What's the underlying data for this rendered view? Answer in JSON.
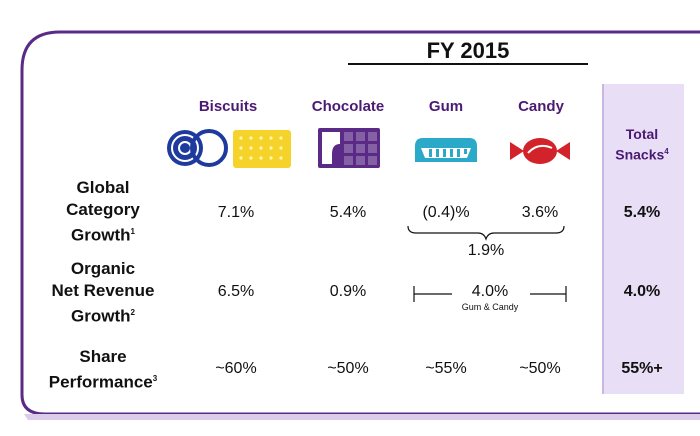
{
  "header": {
    "period": "FY 2015"
  },
  "categories": [
    {
      "name": "Biscuits",
      "icon": "biscuits-icon"
    },
    {
      "name": "Chocolate",
      "icon": "chocolate-icon"
    },
    {
      "name": "Gum",
      "icon": "gum-icon"
    },
    {
      "name": "Candy",
      "icon": "candy-icon"
    }
  ],
  "total": {
    "label": "Total",
    "label2": "Snacks",
    "footnote": "4"
  },
  "rows": {
    "category_growth": {
      "label_lines": [
        "Global",
        "Category",
        "Growth"
      ],
      "footnote": "1",
      "biscuits": "7.1%",
      "chocolate": "5.4%",
      "gum": "(0.4)%",
      "candy": "3.6%",
      "gum_candy_combined": "1.9%",
      "total": "5.4%"
    },
    "revenue_growth": {
      "label_lines": [
        "Organic",
        "Net Revenue",
        "Growth"
      ],
      "footnote": "2",
      "biscuits": "6.5%",
      "chocolate": "0.9%",
      "gum_candy": "4.0%",
      "gum_candy_label": "Gum & Candy",
      "total": "4.0%"
    },
    "share": {
      "label_lines": [
        "Share",
        "Performance"
      ],
      "footnote": "3",
      "biscuits": "~60%",
      "chocolate": "~50%",
      "gum": "~55%",
      "candy": "~50%",
      "total": "55%+"
    }
  },
  "colors": {
    "border": "#5b2a86",
    "accent": "#4b1a73",
    "biscuit_blue": "#1f3a9e",
    "biscuit_yellow": "#f6d32a",
    "chocolate": "#5b2a86",
    "gum": "#2aa9c9",
    "candy": "#d2232a",
    "total_bg": "#e8def5"
  }
}
